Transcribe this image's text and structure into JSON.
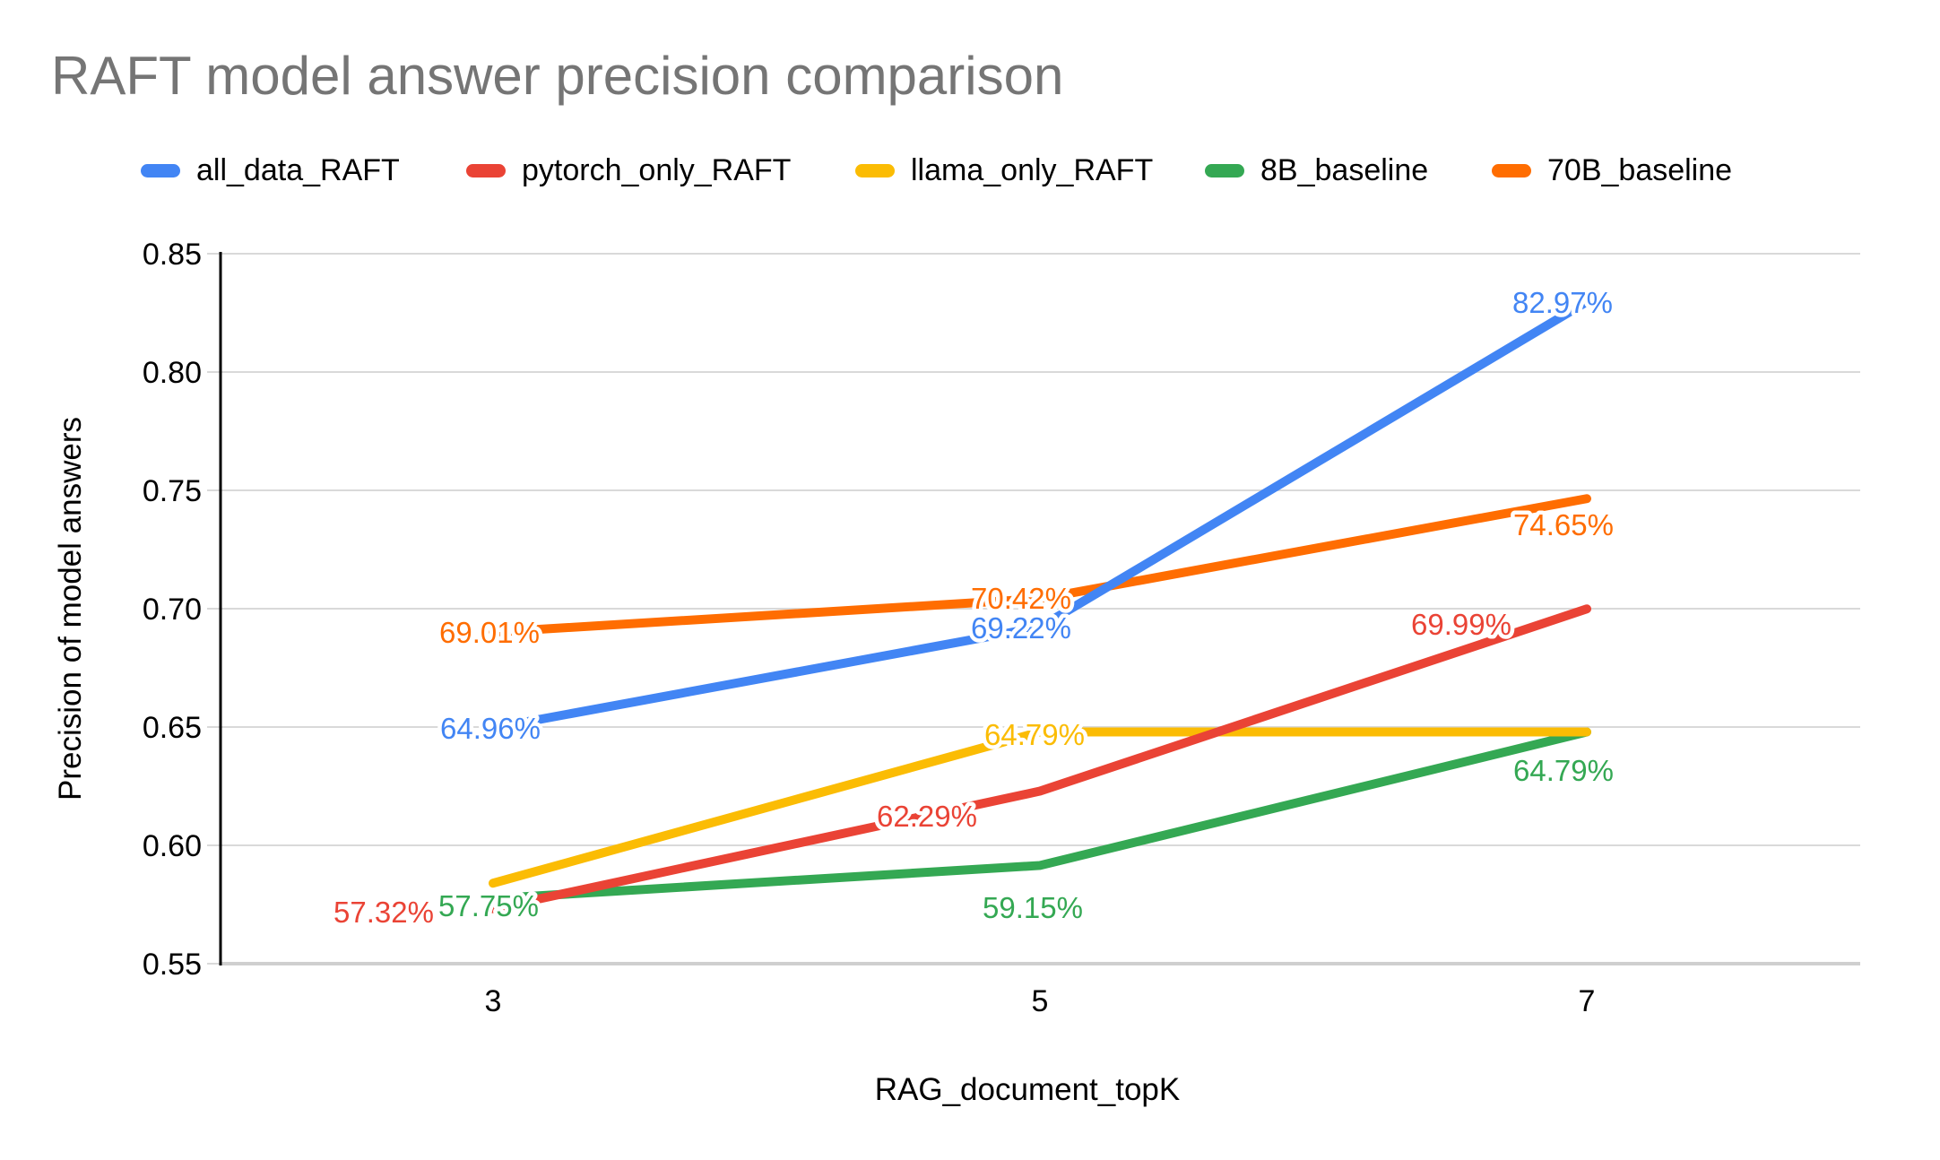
{
  "title": "RAFT model answer precision comparison",
  "chart_data": {
    "type": "line",
    "title": "RAFT model answer precision comparison",
    "x": [
      3,
      5,
      7
    ],
    "xlabel": "RAG_document_topK",
    "ylabel": "Precision of model answers",
    "ylim": [
      0.55,
      0.85
    ],
    "ytick_labels": [
      "0.85",
      "0.80",
      "0.75",
      "0.70",
      "0.65",
      "0.60",
      "0.55"
    ],
    "xtick_labels": [
      "3",
      "5",
      "7"
    ],
    "grid": true,
    "legend_position": "top",
    "label_format": "percent",
    "series": [
      {
        "name": "all_data_RAFT",
        "color": "#4285F4",
        "values": [
          64.96,
          69.22,
          82.97
        ],
        "point_labels": [
          "64.96%",
          "69.22%",
          "82.97%"
        ]
      },
      {
        "name": "pytorch_only_RAFT",
        "color": "#EA4335",
        "values": [
          57.32,
          62.29,
          69.99
        ],
        "point_labels": [
          "57.32%",
          "62.29%",
          "69.99%"
        ]
      },
      {
        "name": "llama_only_RAFT",
        "color": "#FBBC04",
        "values": [
          58.4,
          64.79,
          64.79
        ],
        "point_labels": [
          null,
          "64.79%",
          null
        ]
      },
      {
        "name": "8B_baseline",
        "color": "#34A853",
        "values": [
          57.75,
          59.15,
          64.79
        ],
        "point_labels": [
          "57.75%",
          "59.15%",
          "64.79%"
        ]
      },
      {
        "name": "70B_baseline",
        "color": "#FF6D01",
        "values": [
          69.01,
          70.42,
          74.65
        ],
        "point_labels": [
          "69.01%",
          "70.42%",
          "74.65%"
        ]
      }
    ]
  }
}
